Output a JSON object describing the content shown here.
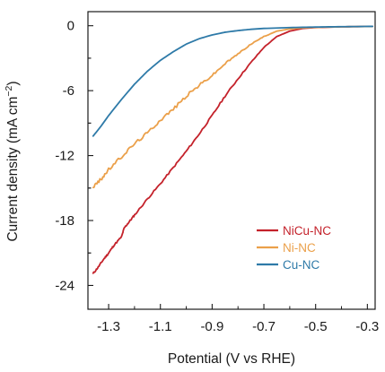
{
  "chart_data": {
    "type": "line",
    "xlabel": "Potential (V vs RHE)",
    "ylabel_main": "Current density (mA cm",
    "ylabel_sup": "−2",
    "ylabel_close": ")",
    "xlim": [
      -1.38,
      -0.27
    ],
    "ylim": [
      -26.2,
      1.3
    ],
    "x_ticks": [
      -1.3,
      -1.1,
      -0.9,
      -0.7,
      -0.5,
      -0.3
    ],
    "x_tick_labels": [
      "-1.3",
      "-1.1",
      "-0.9",
      "-0.7",
      "-0.5",
      "-0.3"
    ],
    "y_ticks": [
      0,
      -6,
      -12,
      -18,
      -24
    ],
    "y_tick_labels": [
      "0",
      "-6",
      "-12",
      "-18",
      "-24"
    ],
    "legend_position": "lower-right",
    "grid": false,
    "series": [
      {
        "name": "NiCu-NC",
        "color": "#c4222b",
        "noise": 0.08,
        "points": [
          [
            -1.36,
            -22.9
          ],
          [
            -1.34,
            -22.3
          ],
          [
            -1.32,
            -21.6
          ],
          [
            -1.3,
            -21.0
          ],
          [
            -1.28,
            -20.3
          ],
          [
            -1.25,
            -19.5
          ],
          [
            -1.24,
            -18.7
          ],
          [
            -1.22,
            -18.1
          ],
          [
            -1.2,
            -17.5
          ],
          [
            -1.15,
            -16.0
          ],
          [
            -1.1,
            -14.6
          ],
          [
            -1.05,
            -13.1
          ],
          [
            -1.0,
            -11.6
          ],
          [
            -0.95,
            -10.0
          ],
          [
            -0.9,
            -8.3
          ],
          [
            -0.85,
            -6.5
          ],
          [
            -0.8,
            -4.9
          ],
          [
            -0.75,
            -3.4
          ],
          [
            -0.7,
            -2.0
          ],
          [
            -0.65,
            -1.0
          ],
          [
            -0.6,
            -0.5
          ],
          [
            -0.55,
            -0.25
          ],
          [
            -0.5,
            -0.17
          ],
          [
            -0.4,
            -0.1
          ],
          [
            -0.3,
            -0.07
          ],
          [
            -0.28,
            -0.06
          ]
        ]
      },
      {
        "name": "Ni-NC",
        "color": "#eba04a",
        "noise": 0.15,
        "points": [
          [
            -1.36,
            -14.9
          ],
          [
            -1.33,
            -14.2
          ],
          [
            -1.3,
            -13.3
          ],
          [
            -1.25,
            -12.1
          ],
          [
            -1.2,
            -10.9
          ],
          [
            -1.15,
            -9.9
          ],
          [
            -1.1,
            -8.7
          ],
          [
            -1.05,
            -7.7
          ],
          [
            -1.0,
            -6.5
          ],
          [
            -0.95,
            -5.5
          ],
          [
            -0.9,
            -4.6
          ],
          [
            -0.85,
            -3.5
          ],
          [
            -0.8,
            -2.6
          ],
          [
            -0.75,
            -1.7
          ],
          [
            -0.7,
            -1.0
          ],
          [
            -0.65,
            -0.5
          ],
          [
            -0.6,
            -0.3
          ],
          [
            -0.55,
            -0.2
          ],
          [
            -0.5,
            -0.15
          ],
          [
            -0.4,
            -0.1
          ],
          [
            -0.28,
            -0.07
          ]
        ]
      },
      {
        "name": "Cu-NC",
        "color": "#2e7aa8",
        "noise": 0.0,
        "points": [
          [
            -1.36,
            -10.2
          ],
          [
            -1.33,
            -9.3
          ],
          [
            -1.3,
            -8.3
          ],
          [
            -1.25,
            -6.8
          ],
          [
            -1.2,
            -5.4
          ],
          [
            -1.15,
            -4.2
          ],
          [
            -1.1,
            -3.2
          ],
          [
            -1.05,
            -2.4
          ],
          [
            -1.0,
            -1.7
          ],
          [
            -0.95,
            -1.2
          ],
          [
            -0.9,
            -0.85
          ],
          [
            -0.85,
            -0.6
          ],
          [
            -0.8,
            -0.45
          ],
          [
            -0.75,
            -0.33
          ],
          [
            -0.7,
            -0.25
          ],
          [
            -0.6,
            -0.17
          ],
          [
            -0.5,
            -0.12
          ],
          [
            -0.4,
            -0.09
          ],
          [
            -0.28,
            -0.06
          ]
        ]
      }
    ]
  }
}
